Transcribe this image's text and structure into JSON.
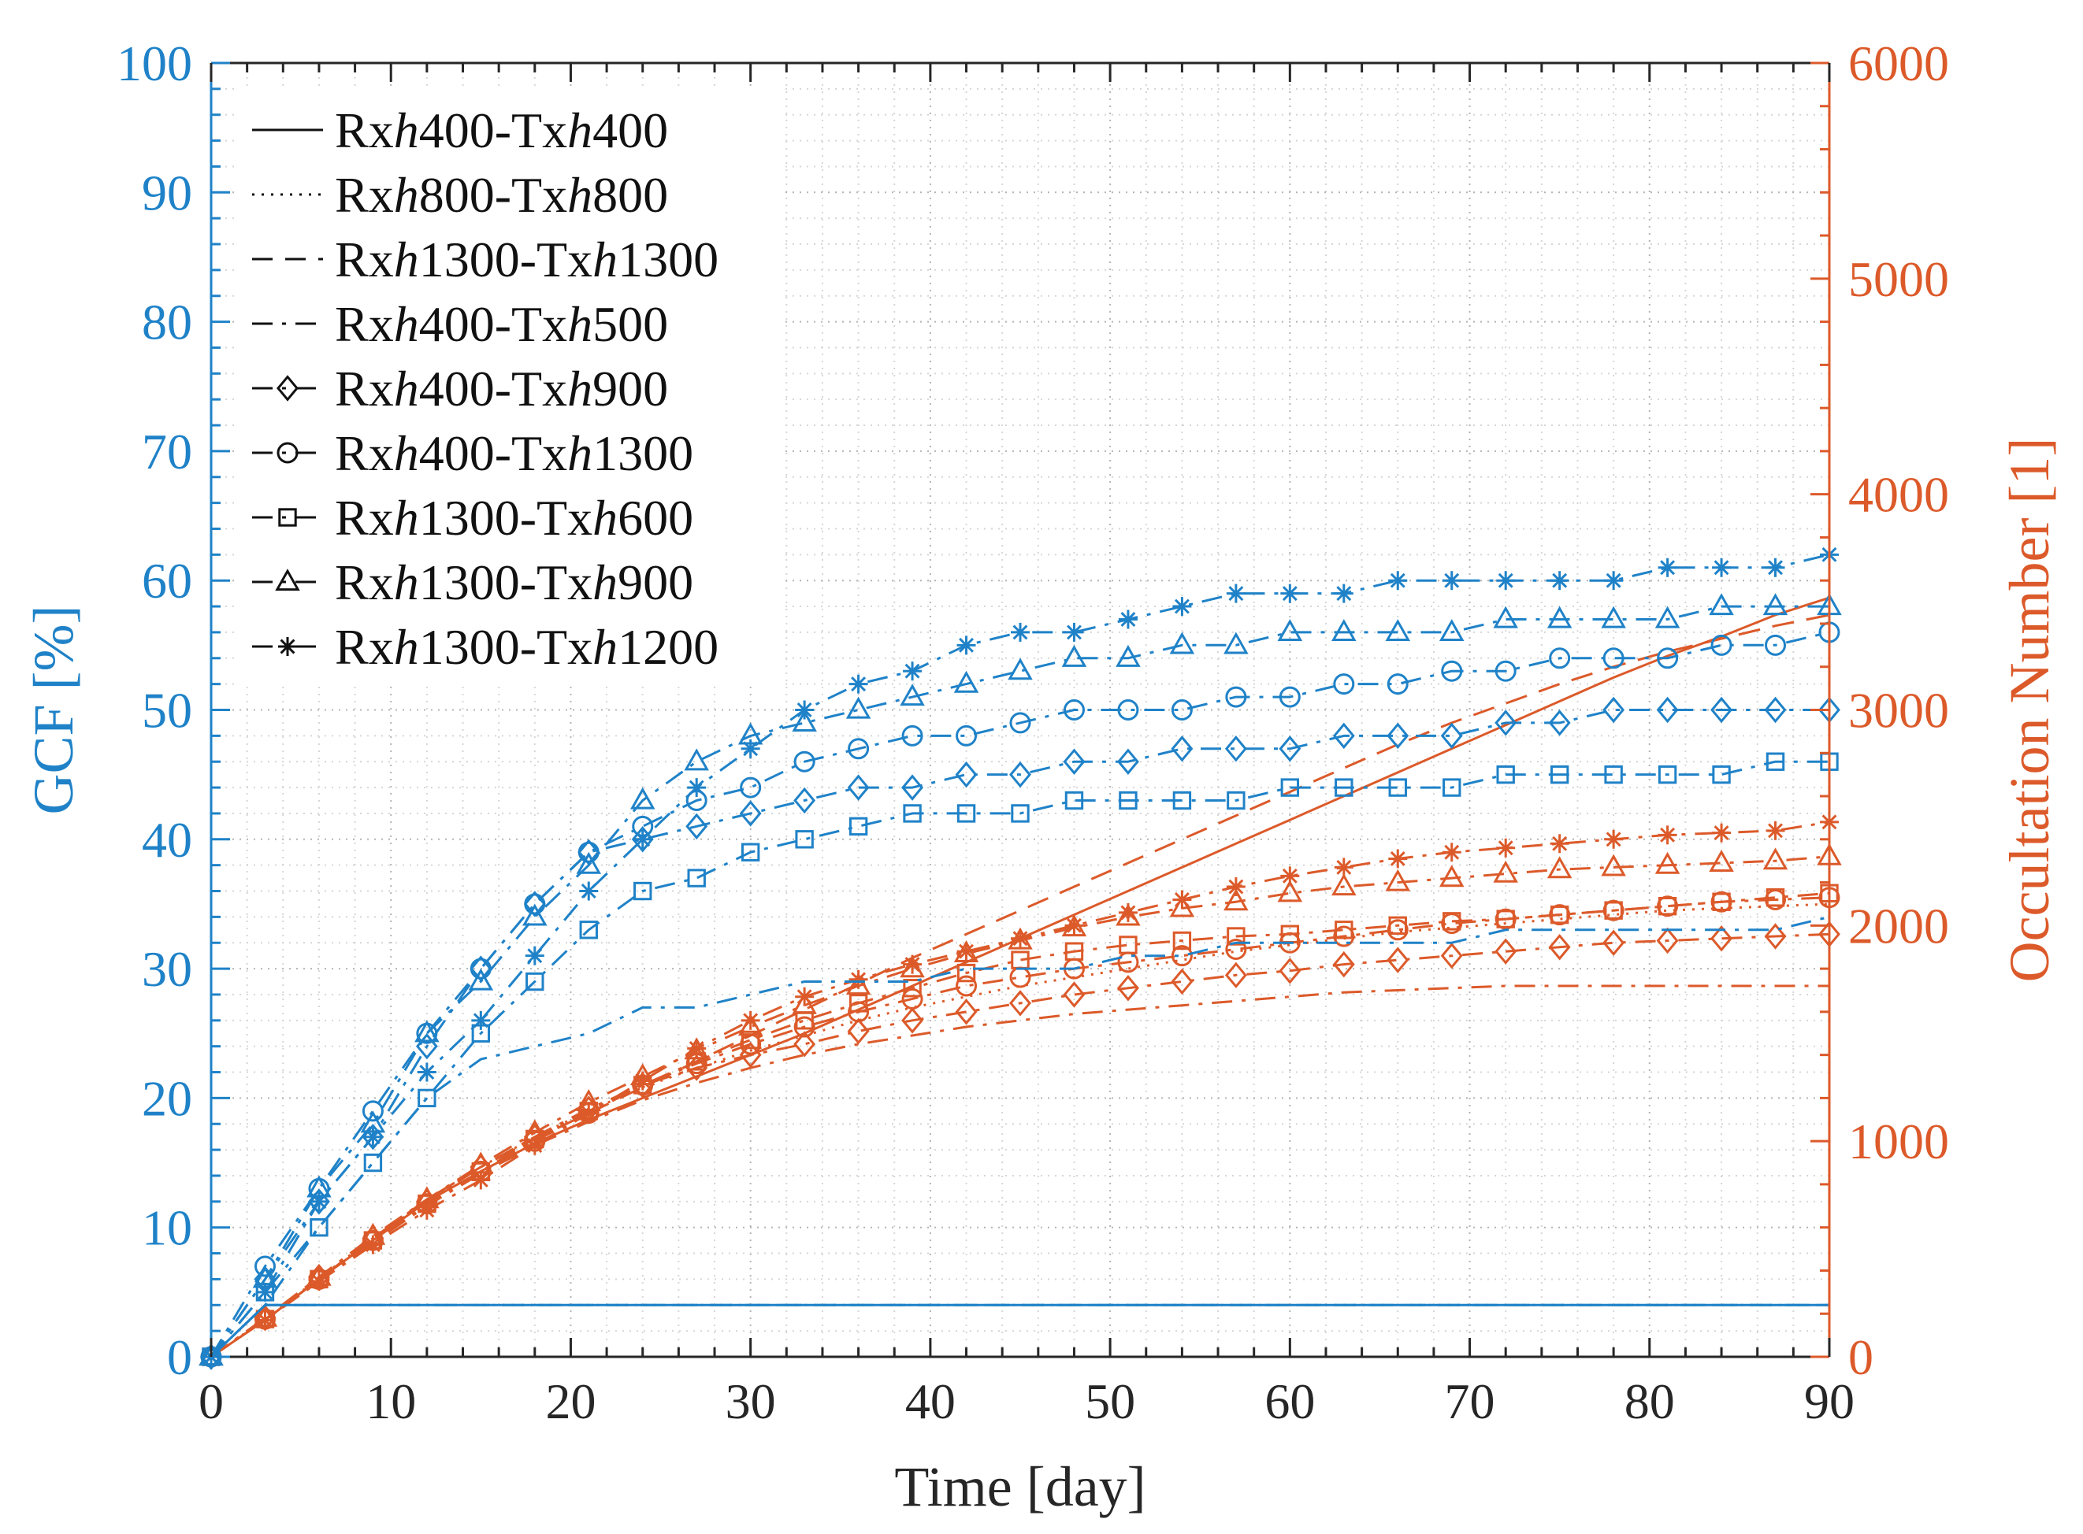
{
  "chart_data": {
    "type": "line",
    "xlabel": "Time [day]",
    "ylabel_left": "GCF [%]",
    "ylabel_right": "Occultation Number [1]",
    "xlim": [
      0,
      90
    ],
    "ylim_left": [
      0,
      100
    ],
    "ylim_right": [
      0,
      6000
    ],
    "x_ticks": [
      0,
      10,
      20,
      30,
      40,
      50,
      60,
      70,
      80,
      90
    ],
    "y_left_ticks": [
      0,
      10,
      20,
      30,
      40,
      50,
      60,
      70,
      80,
      90,
      100
    ],
    "y_right_ticks": [
      0,
      1000,
      2000,
      3000,
      4000,
      5000,
      6000
    ],
    "grid": "minor dotted",
    "legend_position": "top-left",
    "colors": {
      "gcf": "#1f82c8",
      "occultation": "#dc5a2a",
      "legend": "#111111",
      "axis": "#262626"
    },
    "x": [
      0,
      3,
      6,
      9,
      12,
      15,
      18,
      21,
      24,
      27,
      30,
      33,
      36,
      39,
      42,
      45,
      48,
      51,
      54,
      57,
      60,
      63,
      66,
      69,
      72,
      75,
      78,
      81,
      84,
      87,
      90
    ],
    "series": [
      {
        "name": "Rxh400-Txh400",
        "legend_parts": [
          "Rx",
          "h",
          "400-Tx",
          "h",
          "400"
        ],
        "dash": "solid",
        "marker": "none",
        "gcf": [
          0,
          4,
          4,
          4,
          4,
          4,
          4,
          4,
          4,
          4,
          4,
          4,
          4,
          4,
          4,
          4,
          4,
          4,
          4,
          4,
          4,
          4,
          4,
          4,
          4,
          4,
          4,
          4,
          4,
          4,
          4
        ],
        "occ": [
          0,
          170,
          360,
          540,
          720,
          860,
          990,
          1100,
          1200,
          1300,
          1400,
          1500,
          1610,
          1720,
          1830,
          1940,
          2050,
          2160,
          2270,
          2380,
          2490,
          2600,
          2710,
          2820,
          2930,
          3040,
          3150,
          3250,
          3340,
          3440,
          3520
        ]
      },
      {
        "name": "Rxh800-Txh800",
        "legend_parts": [
          "Rx",
          "h",
          "800-Tx",
          "h",
          "800"
        ],
        "dash": "dot",
        "marker": "none",
        "gcf": [
          0,
          4,
          4,
          4,
          4,
          4,
          4,
          4,
          4,
          4,
          4,
          4,
          4,
          4,
          4,
          4,
          4,
          4,
          4,
          4,
          4,
          4,
          4,
          4,
          4,
          4,
          4,
          4,
          4,
          4,
          4
        ],
        "occ": [
          0,
          175,
          365,
          550,
          720,
          880,
          1020,
          1140,
          1250,
          1340,
          1420,
          1490,
          1560,
          1620,
          1670,
          1720,
          1760,
          1800,
          1840,
          1880,
          1910,
          1940,
          1970,
          1990,
          2010,
          2030,
          2050,
          2070,
          2080,
          2090,
          2100
        ]
      },
      {
        "name": "Rxh1300-Txh1300",
        "legend_parts": [
          "Rx",
          "h",
          "1300-Tx",
          "h",
          "1300"
        ],
        "dash": "dash",
        "marker": "none",
        "gcf": [
          0,
          4,
          4,
          4,
          4,
          4,
          4,
          4,
          4,
          4,
          4,
          4,
          4,
          4,
          4,
          4,
          4,
          4,
          4,
          4,
          4,
          4,
          4,
          4,
          4,
          4,
          4,
          4,
          4,
          4,
          4
        ],
        "occ": [
          0,
          170,
          360,
          550,
          730,
          880,
          1010,
          1130,
          1250,
          1370,
          1490,
          1610,
          1730,
          1850,
          1960,
          2070,
          2180,
          2290,
          2400,
          2510,
          2620,
          2730,
          2840,
          2940,
          3030,
          3120,
          3200,
          3270,
          3330,
          3390,
          3440
        ]
      },
      {
        "name": "Rxh400-Txh500",
        "legend_parts": [
          "Rx",
          "h",
          "400-Tx",
          "h",
          "500"
        ],
        "dash": "dashdot",
        "marker": "none",
        "gcf": [
          0,
          4,
          10,
          15,
          20,
          23,
          24,
          25,
          27,
          27,
          28,
          29,
          29,
          29,
          30,
          30,
          30,
          31,
          31,
          32,
          32,
          32,
          32,
          32,
          33,
          33,
          33,
          33,
          33,
          33,
          34
        ],
        "occ": [
          0,
          170,
          350,
          530,
          700,
          850,
          980,
          1090,
          1190,
          1270,
          1340,
          1400,
          1450,
          1490,
          1530,
          1560,
          1590,
          1610,
          1630,
          1650,
          1670,
          1690,
          1700,
          1710,
          1720,
          1720,
          1720,
          1720,
          1720,
          1720,
          1720
        ]
      },
      {
        "name": "Rxh400-Txh900",
        "legend_parts": [
          "Rx",
          "h",
          "400-Tx",
          "h",
          "900"
        ],
        "dash": "dashdot",
        "marker": "diamond",
        "gcf": [
          0,
          6,
          12,
          17,
          24,
          30,
          35,
          39,
          40,
          41,
          42,
          43,
          44,
          44,
          45,
          45,
          46,
          46,
          47,
          47,
          47,
          48,
          48,
          48,
          49,
          49,
          50,
          50,
          50,
          50,
          50
        ],
        "occ": [
          0,
          180,
          370,
          550,
          720,
          880,
          1020,
          1150,
          1260,
          1340,
          1400,
          1450,
          1510,
          1560,
          1600,
          1640,
          1680,
          1710,
          1740,
          1770,
          1790,
          1820,
          1840,
          1860,
          1880,
          1900,
          1920,
          1930,
          1940,
          1950,
          1960
        ]
      },
      {
        "name": "Rxh400-Txh1300",
        "legend_parts": [
          "Rx",
          "h",
          "400-Tx",
          "h",
          "1300"
        ],
        "dash": "dashdot",
        "marker": "circle",
        "gcf": [
          0,
          7,
          13,
          19,
          25,
          30,
          35,
          39,
          41,
          43,
          44,
          46,
          47,
          48,
          48,
          49,
          50,
          50,
          50,
          51,
          51,
          52,
          52,
          53,
          53,
          54,
          54,
          54,
          55,
          55,
          56
        ],
        "occ": [
          0,
          175,
          360,
          540,
          710,
          860,
          1000,
          1130,
          1260,
          1360,
          1450,
          1530,
          1600,
          1660,
          1720,
          1760,
          1800,
          1830,
          1860,
          1890,
          1920,
          1950,
          1980,
          2010,
          2030,
          2050,
          2070,
          2090,
          2110,
          2120,
          2130
        ]
      },
      {
        "name": "Rxh1300-Txh600",
        "legend_parts": [
          "Rx",
          "h",
          "1300-Tx",
          "h",
          "600"
        ],
        "dash": "dashdot",
        "marker": "square",
        "gcf": [
          0,
          5,
          10,
          15,
          20,
          25,
          29,
          33,
          36,
          37,
          39,
          40,
          41,
          42,
          42,
          42,
          43,
          43,
          43,
          43,
          44,
          44,
          44,
          44,
          45,
          45,
          45,
          45,
          45,
          46,
          46
        ],
        "occ": [
          0,
          175,
          360,
          540,
          710,
          860,
          1010,
          1140,
          1260,
          1370,
          1470,
          1560,
          1640,
          1710,
          1780,
          1840,
          1880,
          1910,
          1930,
          1950,
          1960,
          1980,
          2000,
          2020,
          2030,
          2050,
          2070,
          2090,
          2110,
          2130,
          2150
        ]
      },
      {
        "name": "Rxh1300-Txh900",
        "legend_parts": [
          "Rx",
          "h",
          "1300-Tx",
          "h",
          "900"
        ],
        "dash": "dashdot",
        "marker": "triangle",
        "gcf": [
          0,
          6,
          13,
          18,
          25,
          29,
          34,
          38,
          43,
          46,
          48,
          49,
          50,
          51,
          52,
          53,
          54,
          54,
          55,
          55,
          56,
          56,
          56,
          56,
          57,
          57,
          57,
          57,
          58,
          58,
          58
        ],
        "occ": [
          0,
          180,
          370,
          560,
          730,
          890,
          1040,
          1180,
          1300,
          1420,
          1530,
          1630,
          1720,
          1800,
          1870,
          1930,
          1990,
          2040,
          2080,
          2110,
          2150,
          2180,
          2200,
          2220,
          2240,
          2260,
          2270,
          2280,
          2290,
          2300,
          2320
        ]
      },
      {
        "name": "Rxh1300-Txh1200",
        "legend_parts": [
          "Rx",
          "h",
          "1300-Tx",
          "h",
          "1200"
        ],
        "dash": "dashdot",
        "marker": "star",
        "gcf": [
          0,
          5,
          12,
          17,
          22,
          26,
          31,
          36,
          40,
          44,
          47,
          50,
          52,
          53,
          55,
          56,
          56,
          57,
          58,
          59,
          59,
          59,
          60,
          60,
          60,
          60,
          60,
          61,
          61,
          61,
          62
        ],
        "occ": [
          0,
          170,
          350,
          520,
          680,
          820,
          980,
          1130,
          1280,
          1430,
          1560,
          1670,
          1750,
          1820,
          1880,
          1940,
          2000,
          2060,
          2120,
          2180,
          2230,
          2270,
          2310,
          2340,
          2360,
          2380,
          2400,
          2420,
          2430,
          2440,
          2480
        ]
      }
    ]
  }
}
